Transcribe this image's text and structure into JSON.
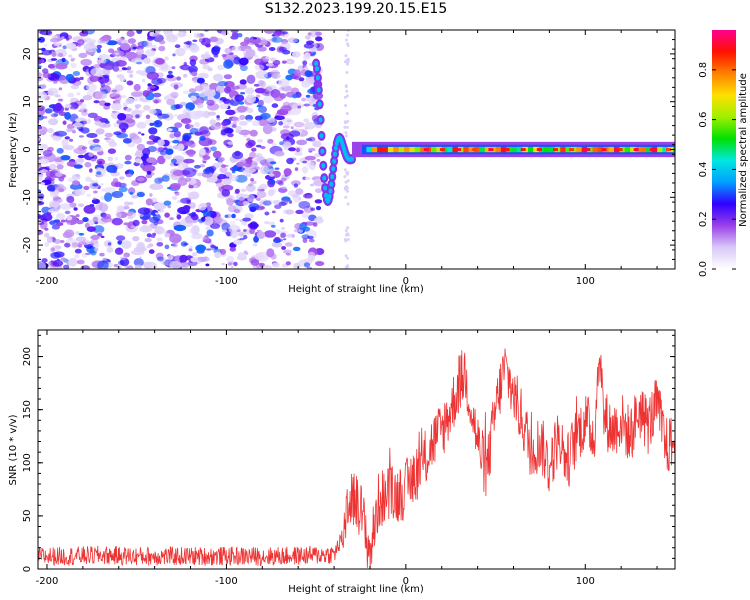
{
  "title": "S132.2023.199.20.15.E15",
  "colors": {
    "snr_line": "#ee3333",
    "frame": "#000000"
  },
  "chart_data": [
    {
      "type": "heatmap",
      "xlabel": "Height of straight line (km)",
      "ylabel": "Frequency (Hz)",
      "xlim": [
        -205,
        150
      ],
      "ylim": [
        -25,
        25
      ],
      "xticks": [
        -200,
        -100,
        0,
        100
      ],
      "yticks": [
        -20,
        -10,
        0,
        10,
        20
      ],
      "colorbar": {
        "label": "Normalized spectral amplitude",
        "range": [
          0,
          0.96
        ],
        "ticks": [
          0.0,
          0.2,
          0.4,
          0.6,
          0.8
        ],
        "colormap": [
          "#ffffff",
          "#d8c8f8",
          "#9a40e8",
          "#3000ff",
          "#00a0ff",
          "#00e8e0",
          "#00e000",
          "#a0f000",
          "#ffe000",
          "#ff8000",
          "#ff1000",
          "#ff0090"
        ]
      },
      "features": {
        "noise_region_x": [
          -205,
          -48
        ],
        "signal_onset_x": -48,
        "signal_band_center_hz": 0,
        "signal_band_halfwidth_hz": 1
      }
    },
    {
      "type": "line",
      "xlabel": "Height of straight line (km)",
      "ylabel": "SNR (10 * v/v)",
      "xlim": [
        -205,
        150
      ],
      "ylim": [
        0,
        225
      ],
      "xticks": [
        -200,
        -100,
        0,
        100
      ],
      "yticks": [
        0,
        50,
        100,
        150,
        200
      ],
      "series": [
        {
          "x": [
            -205,
            -190,
            -170,
            -150,
            -130,
            -110,
            -90,
            -70,
            -50,
            -40,
            -35,
            -33,
            -30,
            -25,
            -20,
            -15,
            -10,
            -5,
            0,
            5,
            10,
            15,
            20,
            25,
            30,
            33,
            36,
            40,
            45,
            50,
            55,
            60,
            65,
            70,
            75,
            80,
            85,
            90,
            95,
            100,
            105,
            108,
            110,
            115,
            120,
            125,
            130,
            135,
            140,
            145,
            150
          ],
          "values": [
            12,
            12,
            13,
            12,
            12,
            12,
            12,
            12,
            13,
            14,
            30,
            60,
            70,
            55,
            15,
            65,
            70,
            70,
            75,
            90,
            100,
            120,
            130,
            150,
            175,
            185,
            155,
            120,
            90,
            150,
            190,
            165,
            140,
            110,
            120,
            95,
            125,
            100,
            125,
            140,
            125,
            210,
            145,
            130,
            140,
            125,
            150,
            135,
            155,
            115,
            120
          ]
        }
      ]
    }
  ]
}
